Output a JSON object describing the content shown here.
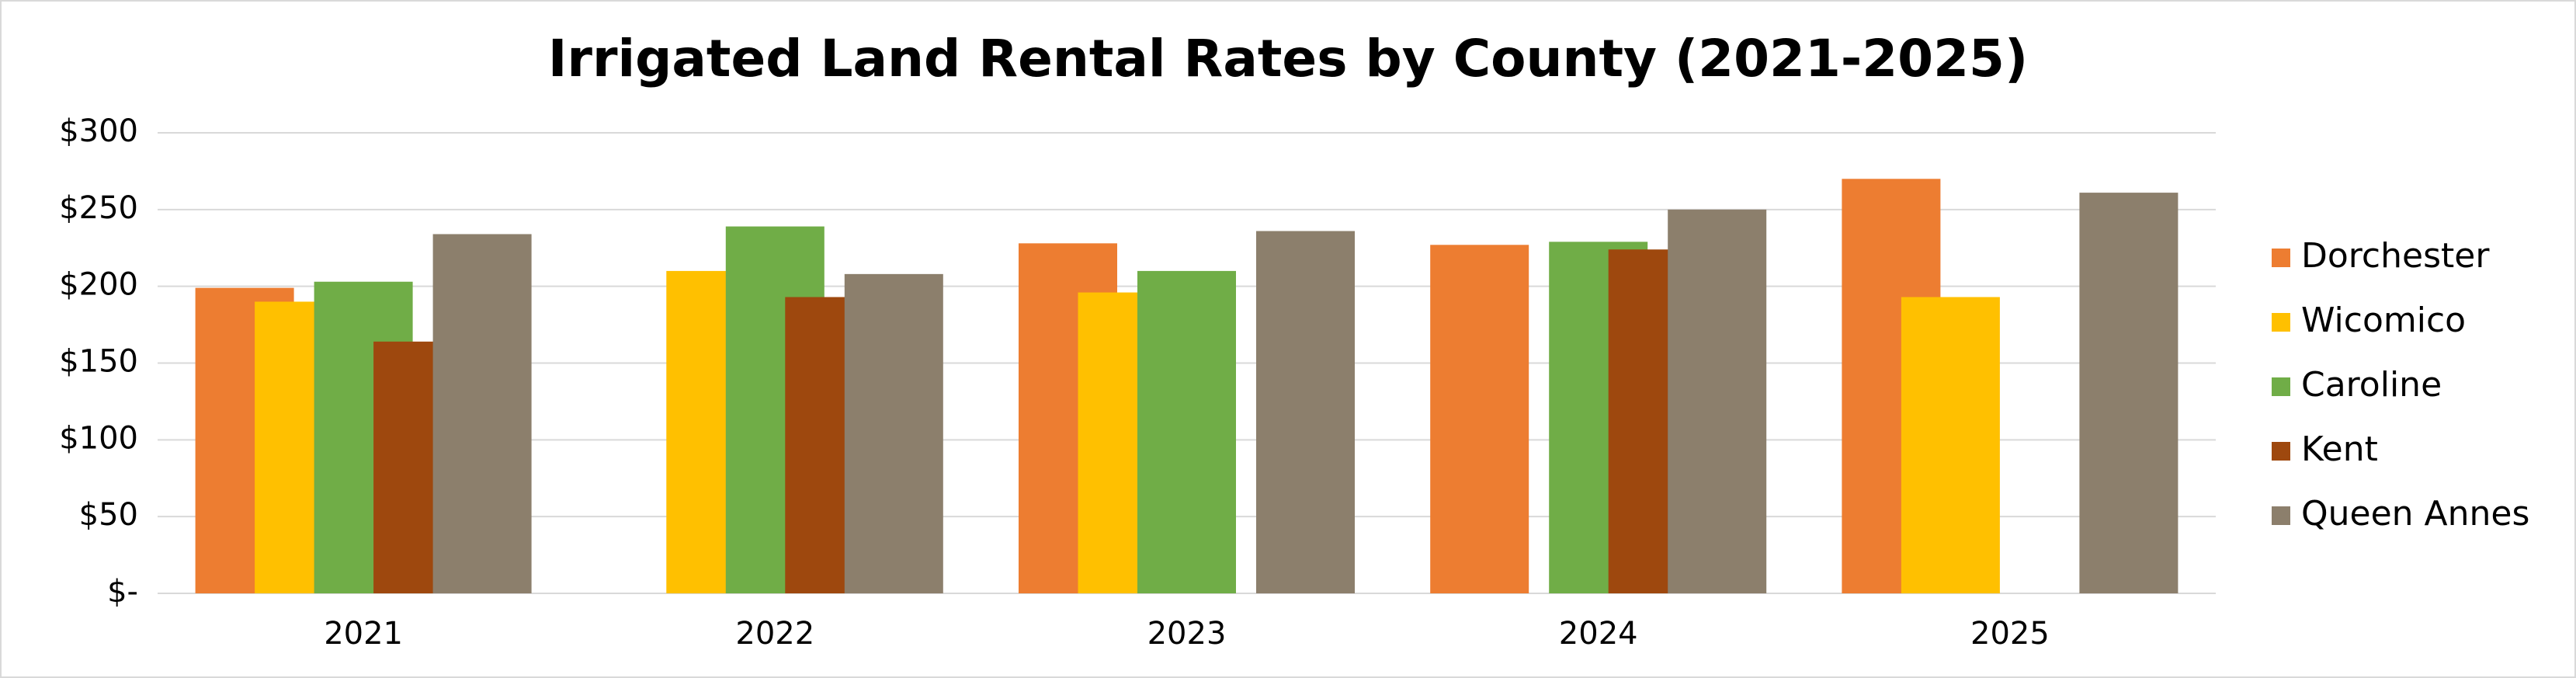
{
  "chart_data": {
    "type": "bar",
    "title": "Irrigated Land Rental Rates by County (2021-2025)",
    "categories": [
      "2021",
      "2022",
      "2023",
      "2024",
      "2025"
    ],
    "series": [
      {
        "name": "Dorchester",
        "color": "#ed7d31",
        "values": [
          199,
          null,
          228,
          227,
          270
        ]
      },
      {
        "name": "Wicomico",
        "color": "#ffc000",
        "values": [
          190,
          210,
          196,
          null,
          193
        ]
      },
      {
        "name": "Caroline",
        "color": "#70ad47",
        "values": [
          203,
          239,
          210,
          229,
          null
        ]
      },
      {
        "name": "Kent",
        "color": "#9e480e",
        "values": [
          164,
          193,
          null,
          224,
          null
        ]
      },
      {
        "name": "Queen Annes",
        "color": "#8c7f6c",
        "values": [
          234,
          208,
          236,
          250,
          261
        ]
      }
    ],
    "ylim": [
      0,
      300
    ],
    "yticks": [
      {
        "value": 0,
        "label": "$-"
      },
      {
        "value": 50,
        "label": "$50"
      },
      {
        "value": 100,
        "label": "$100"
      },
      {
        "value": 150,
        "label": "$150"
      },
      {
        "value": 200,
        "label": "$200"
      },
      {
        "value": 250,
        "label": "$250"
      },
      {
        "value": 300,
        "label": "$300"
      }
    ],
    "grid": true,
    "legend": "right"
  }
}
